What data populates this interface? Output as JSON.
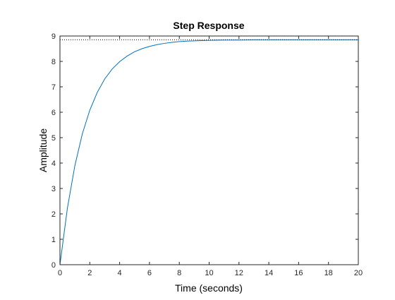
{
  "chart_data": {
    "type": "line",
    "title": "Step Response",
    "xlabel": "Time (seconds)",
    "ylabel": "Amplitude",
    "xlim": [
      0,
      20
    ],
    "ylim": [
      0,
      9
    ],
    "xticks": [
      0,
      2,
      4,
      6,
      8,
      10,
      12,
      14,
      16,
      18,
      20
    ],
    "yticks": [
      0,
      1,
      2,
      3,
      4,
      5,
      6,
      7,
      8,
      9
    ],
    "grid": false,
    "series": [
      {
        "style": "solid",
        "color": "#0072BD",
        "x": [
          0,
          0.5,
          1,
          1.5,
          2,
          2.5,
          3,
          3.5,
          4,
          4.5,
          5,
          5.5,
          6,
          6.5,
          7,
          7.5,
          8,
          8.5,
          9,
          9.5,
          10,
          11,
          12,
          13,
          14,
          15,
          16,
          17,
          18,
          19,
          20
        ],
        "y": [
          0,
          2.23,
          3.9,
          5.15,
          6.08,
          6.78,
          7.31,
          7.7,
          7.99,
          8.21,
          8.38,
          8.5,
          8.59,
          8.66,
          8.71,
          8.75,
          8.78,
          8.8,
          8.81,
          8.82,
          8.83,
          8.84,
          8.84,
          8.85,
          8.85,
          8.85,
          8.85,
          8.85,
          8.85,
          8.85,
          8.85
        ]
      },
      {
        "style": "dotted",
        "color": "#000000",
        "x": [
          0,
          20
        ],
        "y": [
          8.85,
          8.85
        ]
      }
    ]
  }
}
